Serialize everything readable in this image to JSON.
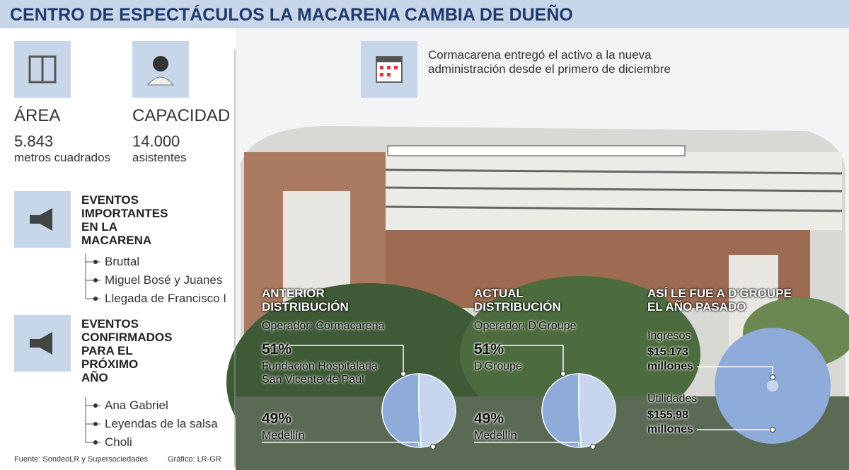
{
  "title": "CENTRO DE ESPECTÁCULOS LA MACARENA CAMBIA DE DUEÑO",
  "stats": [
    {
      "label": "ÁREA",
      "value": "5.843",
      "unit": "metros cuadrados"
    },
    {
      "label": "CAPACIDAD",
      "value": "14.000",
      "unit": "asistentes"
    }
  ],
  "events": [
    {
      "title": "EVENTOS IMPORTANTES EN LA MACARENA",
      "items": [
        "Bruttal",
        "Miguel Bosé y Juanes",
        "Llegada de Francisco I"
      ]
    },
    {
      "title": "EVENTOS CONFIRMADOS PARA EL PRÓXIMO AÑO",
      "items": [
        "Ana Gabriel",
        "Leyendas de la salsa",
        "Choli"
      ]
    }
  ],
  "note": "Cormacarena entregó el activo a la nueva administración desde el primero de diciembre",
  "source": "Fuente: SondeoLR y Supersociedades",
  "credit": "Gráfico: LR-GR",
  "chart_data": [
    {
      "type": "pie",
      "title": "ANTERIOR DISTRIBUCIÓN",
      "subtitle": "Operador: Cormacarena",
      "categories": [
        "Fundación Hospitalaria San Vicente de Paúl",
        "Medellín"
      ],
      "values": [
        51,
        49
      ],
      "value_labels": [
        "51%",
        "49%"
      ],
      "colors": [
        "#8eabd9",
        "#c7d6ee"
      ]
    },
    {
      "type": "pie",
      "title": "ACTUAL DISTRIBUCIÓN",
      "subtitle": "Operador: D'Groupe",
      "categories": [
        "D'Groupe",
        "Medellín"
      ],
      "values": [
        51,
        49
      ],
      "value_labels": [
        "51%",
        "49%"
      ],
      "colors": [
        "#8eabd9",
        "#c7d6ee"
      ]
    },
    {
      "type": "bubble",
      "title": "ASÍ LE FUE A D'GROUPE EL AÑO PASADO",
      "categories": [
        "Ingresos",
        "Utilidades"
      ],
      "values": [
        15173,
        155.98
      ],
      "value_labels": [
        "$15.173 millones",
        "$155,98 millones"
      ],
      "colors": [
        "#8eabd9",
        "#c7d6ee"
      ]
    }
  ]
}
